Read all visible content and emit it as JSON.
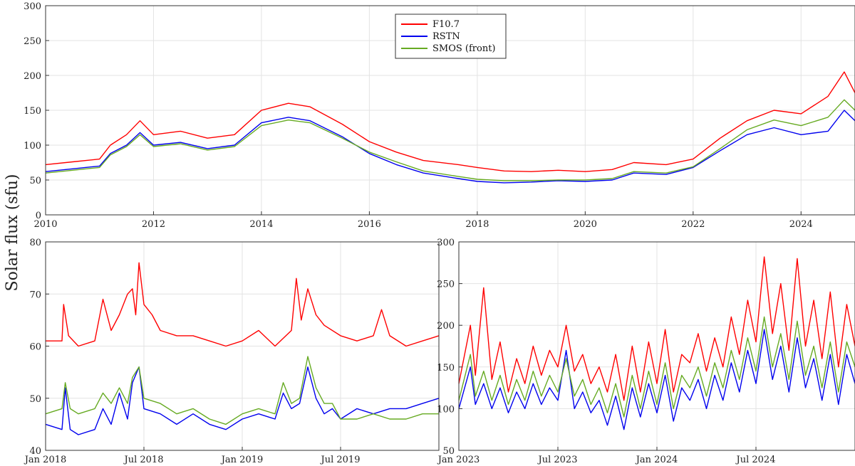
{
  "figure": {
    "ylabel": "Solar flux (sfu)"
  },
  "colors": {
    "F10.7": "#ff0000",
    "RSTN": "#0000ee",
    "SMOS (front)": "#66aa22"
  },
  "chart_data": [
    {
      "type": "line",
      "title": "",
      "xlabel": "",
      "ylabel": "Solar flux (sfu)",
      "xlim": [
        2010,
        2025
      ],
      "ylim": [
        0,
        300
      ],
      "xticks": [
        2010,
        2012,
        2014,
        2016,
        2018,
        2020,
        2022,
        2024
      ],
      "xticklabels": [
        "2010",
        "2012",
        "2014",
        "2016",
        "2018",
        "2020",
        "2022",
        "2024"
      ],
      "yticks": [
        0,
        50,
        100,
        150,
        200,
        250,
        300
      ],
      "yticklabels": [
        "0",
        "50",
        "100",
        "150",
        "200",
        "250",
        "300"
      ],
      "grid": true,
      "legend": {
        "position": "top-center",
        "entries": [
          "F10.7",
          "RSTN",
          "SMOS (front)"
        ]
      },
      "series": [
        {
          "name": "F10.7",
          "x": [
            2010.0,
            2010.5,
            2011.0,
            2011.2,
            2011.5,
            2011.75,
            2012.0,
            2012.5,
            2013.0,
            2013.5,
            2014.0,
            2014.5,
            2014.9,
            2015.5,
            2016.0,
            2016.5,
            2017.0,
            2017.65,
            2018.0,
            2018.5,
            2019.0,
            2019.5,
            2020.0,
            2020.5,
            2020.9,
            2021.5,
            2022.0,
            2022.5,
            2023.0,
            2023.5,
            2024.0,
            2024.5,
            2024.8,
            2025.0
          ],
          "y": [
            72,
            76,
            80,
            100,
            115,
            135,
            115,
            120,
            110,
            115,
            150,
            160,
            155,
            130,
            105,
            90,
            78,
            72,
            68,
            63,
            62,
            64,
            62,
            65,
            75,
            72,
            80,
            110,
            135,
            150,
            145,
            170,
            205,
            175
          ]
        },
        {
          "name": "RSTN",
          "x": [
            2010.0,
            2010.5,
            2011.0,
            2011.2,
            2011.5,
            2011.75,
            2012.0,
            2012.5,
            2013.0,
            2013.5,
            2014.0,
            2014.5,
            2014.9,
            2015.5,
            2016.0,
            2016.5,
            2017.0,
            2017.65,
            2018.0,
            2018.5,
            2019.0,
            2019.5,
            2020.0,
            2020.5,
            2020.9,
            2021.5,
            2022.0,
            2022.5,
            2023.0,
            2023.5,
            2024.0,
            2024.5,
            2024.8,
            2025.0
          ],
          "y": [
            62,
            66,
            70,
            88,
            100,
            118,
            100,
            104,
            95,
            100,
            132,
            140,
            135,
            112,
            88,
            72,
            60,
            52,
            48,
            46,
            47,
            49,
            48,
            50,
            60,
            58,
            68,
            92,
            115,
            125,
            115,
            120,
            150,
            135
          ]
        },
        {
          "name": "SMOS (front)",
          "x": [
            2010.0,
            2010.5,
            2011.0,
            2011.2,
            2011.5,
            2011.75,
            2012.0,
            2012.5,
            2013.0,
            2013.5,
            2014.0,
            2014.5,
            2014.9,
            2015.5,
            2016.0,
            2016.5,
            2017.0,
            2017.65,
            2018.0,
            2018.5,
            2019.0,
            2019.5,
            2020.0,
            2020.5,
            2020.9,
            2021.5,
            2022.0,
            2022.5,
            2023.0,
            2023.5,
            2024.0,
            2024.5,
            2024.8,
            2025.0
          ],
          "y": [
            60,
            64,
            68,
            86,
            98,
            115,
            98,
            102,
            93,
            98,
            128,
            136,
            132,
            110,
            90,
            76,
            63,
            55,
            51,
            49,
            49,
            50,
            50,
            52,
            62,
            60,
            69,
            95,
            122,
            136,
            128,
            140,
            165,
            150
          ]
        }
      ]
    },
    {
      "type": "line",
      "title": "",
      "xlabel": "",
      "ylabel": "",
      "xlim": [
        0,
        24
      ],
      "ylim": [
        40,
        80
      ],
      "xticks": [
        0,
        6,
        12,
        18
      ],
      "xticklabels": [
        "Jan 2018",
        "Jul 2018",
        "Jan 2019",
        "Jul 2019"
      ],
      "yticks": [
        40,
        50,
        60,
        70,
        80
      ],
      "yticklabels": [
        "40",
        "50",
        "60",
        "70",
        "80"
      ],
      "grid": true,
      "series": [
        {
          "name": "F10.7",
          "x": [
            0,
            1,
            1.1,
            1.4,
            2,
            3,
            3.5,
            4,
            4.5,
            5,
            5.3,
            5.5,
            5.7,
            6,
            6.5,
            7,
            8,
            9,
            10,
            11,
            12,
            13,
            14,
            15,
            15.3,
            15.6,
            16,
            16.5,
            17,
            18,
            19,
            20,
            20.5,
            21,
            22,
            23,
            24
          ],
          "y": [
            61,
            61,
            68,
            62,
            60,
            61,
            69,
            63,
            66,
            70,
            71,
            66,
            76,
            68,
            66,
            63,
            62,
            62,
            61,
            60,
            61,
            63,
            60,
            63,
            73,
            65,
            71,
            66,
            64,
            62,
            61,
            62,
            67,
            62,
            60,
            61,
            62
          ]
        },
        {
          "name": "RSTN",
          "x": [
            0,
            1,
            1.2,
            1.5,
            2,
            3,
            3.5,
            4,
            4.5,
            5,
            5.3,
            5.7,
            6,
            7,
            8,
            9,
            10,
            11,
            12,
            13,
            14,
            14.5,
            15,
            15.5,
            16,
            16.5,
            17,
            17.5,
            18,
            19,
            20,
            21,
            22,
            23,
            24
          ],
          "y": [
            45,
            44,
            52,
            44,
            43,
            44,
            48,
            45,
            51,
            46,
            53,
            56,
            48,
            47,
            45,
            47,
            45,
            44,
            46,
            47,
            46,
            51,
            48,
            49,
            56,
            50,
            47,
            48,
            46,
            48,
            47,
            48,
            48,
            49,
            50
          ]
        },
        {
          "name": "SMOS (front)",
          "x": [
            0,
            1,
            1.2,
            1.5,
            2,
            3,
            3.5,
            4,
            4.5,
            5,
            5.3,
            5.7,
            6,
            7,
            8,
            9,
            10,
            11,
            12,
            13,
            14,
            14.5,
            15,
            15.5,
            16,
            16.5,
            17,
            17.5,
            18,
            19,
            20,
            21,
            22,
            23,
            24
          ],
          "y": [
            47,
            48,
            53,
            48,
            47,
            48,
            51,
            49,
            52,
            49,
            54,
            56,
            50,
            49,
            47,
            48,
            46,
            45,
            47,
            48,
            47,
            53,
            49,
            50,
            58,
            52,
            49,
            49,
            46,
            46,
            47,
            46,
            46,
            47,
            47
          ]
        }
      ]
    },
    {
      "type": "line",
      "title": "",
      "xlabel": "",
      "ylabel": "",
      "xlim": [
        0,
        24
      ],
      "ylim": [
        50,
        300
      ],
      "xticks": [
        0,
        6,
        12,
        18
      ],
      "xticklabels": [
        "Jan 2023",
        "Jul 2023",
        "Jan 2024",
        "Jul 2024"
      ],
      "yticks": [
        50,
        100,
        150,
        200,
        250,
        300
      ],
      "yticklabels": [
        "50",
        "100",
        "150",
        "200",
        "250",
        "300"
      ],
      "grid": true,
      "series": [
        {
          "name": "F10.7",
          "x": [
            0,
            0.7,
            1,
            1.5,
            2,
            2.5,
            3,
            3.5,
            4,
            4.5,
            5,
            5.5,
            6,
            6.5,
            7,
            7.5,
            8,
            8.5,
            9,
            9.5,
            10,
            10.5,
            11,
            11.5,
            12,
            12.5,
            13,
            13.5,
            14,
            14.5,
            15,
            15.5,
            16,
            16.5,
            17,
            17.5,
            18,
            18.5,
            19,
            19.5,
            20,
            20.5,
            21,
            21.5,
            22,
            22.5,
            23,
            23.5,
            24
          ],
          "y": [
            130,
            200,
            140,
            245,
            135,
            180,
            120,
            160,
            130,
            175,
            140,
            170,
            150,
            200,
            145,
            165,
            130,
            150,
            120,
            165,
            110,
            175,
            120,
            180,
            130,
            195,
            120,
            165,
            155,
            190,
            145,
            185,
            150,
            210,
            165,
            230,
            180,
            282,
            190,
            250,
            170,
            280,
            175,
            230,
            160,
            240,
            150,
            225,
            175
          ]
        },
        {
          "name": "RSTN",
          "x": [
            0,
            0.7,
            1,
            1.5,
            2,
            2.5,
            3,
            3.5,
            4,
            4.5,
            5,
            5.5,
            6,
            6.5,
            7,
            7.5,
            8,
            8.5,
            9,
            9.5,
            10,
            10.5,
            11,
            11.5,
            12,
            12.5,
            13,
            13.5,
            14,
            14.5,
            15,
            15.5,
            16,
            16.5,
            17,
            17.5,
            18,
            18.5,
            19,
            19.5,
            20,
            20.5,
            21,
            21.5,
            22,
            22.5,
            23,
            23.5,
            24
          ],
          "y": [
            100,
            150,
            105,
            130,
            100,
            125,
            95,
            120,
            100,
            130,
            105,
            125,
            110,
            170,
            100,
            120,
            95,
            110,
            80,
            115,
            75,
            125,
            90,
            130,
            95,
            140,
            85,
            125,
            110,
            135,
            100,
            140,
            110,
            155,
            120,
            170,
            130,
            195,
            135,
            175,
            120,
            185,
            125,
            160,
            110,
            165,
            105,
            165,
            130
          ]
        },
        {
          "name": "SMOS (front)",
          "x": [
            0,
            0.7,
            1,
            1.5,
            2,
            2.5,
            3,
            3.5,
            4,
            4.5,
            5,
            5.5,
            6,
            6.5,
            7,
            7.5,
            8,
            8.5,
            9,
            9.5,
            10,
            10.5,
            11,
            11.5,
            12,
            12.5,
            13,
            13.5,
            14,
            14.5,
            15,
            15.5,
            16,
            16.5,
            17,
            17.5,
            18,
            18.5,
            19,
            19.5,
            20,
            20.5,
            21,
            21.5,
            22,
            22.5,
            23,
            23.5,
            24
          ],
          "y": [
            110,
            165,
            115,
            145,
            110,
            140,
            105,
            135,
            110,
            145,
            115,
            140,
            120,
            160,
            115,
            135,
            105,
            125,
            95,
            130,
            90,
            140,
            100,
            145,
            105,
            155,
            100,
            140,
            125,
            150,
            115,
            155,
            125,
            170,
            135,
            185,
            145,
            210,
            150,
            190,
            135,
            205,
            140,
            175,
            125,
            180,
            120,
            180,
            150
          ]
        }
      ]
    }
  ]
}
